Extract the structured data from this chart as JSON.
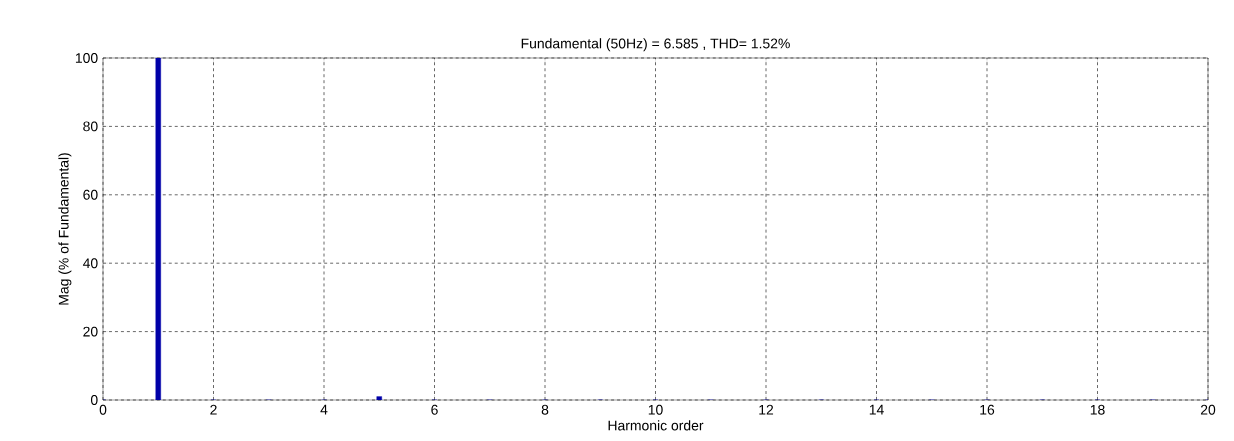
{
  "chart_data": {
    "type": "bar",
    "title": "Fundamental (50Hz) = 6.585 , THD= 1.52%",
    "xlabel": "Harmonic order",
    "ylabel": "Mag (% of Fundamental)",
    "x": [
      0,
      1,
      2,
      3,
      4,
      5,
      6,
      7,
      8,
      9,
      10,
      11,
      12,
      13,
      14,
      15,
      16,
      17,
      18,
      19,
      20
    ],
    "values": [
      0,
      100,
      0,
      0,
      0,
      1,
      0,
      0,
      0,
      0,
      0,
      0,
      0,
      0,
      0,
      0,
      0,
      0,
      0,
      0,
      0
    ],
    "color": "#0000a8",
    "xlim": [
      0,
      20
    ],
    "ylim": [
      0,
      100
    ],
    "xticks": [
      0,
      2,
      4,
      6,
      8,
      10,
      12,
      14,
      16,
      18,
      20
    ],
    "yticks": [
      0,
      20,
      40,
      60,
      80,
      100
    ],
    "grid": true
  }
}
